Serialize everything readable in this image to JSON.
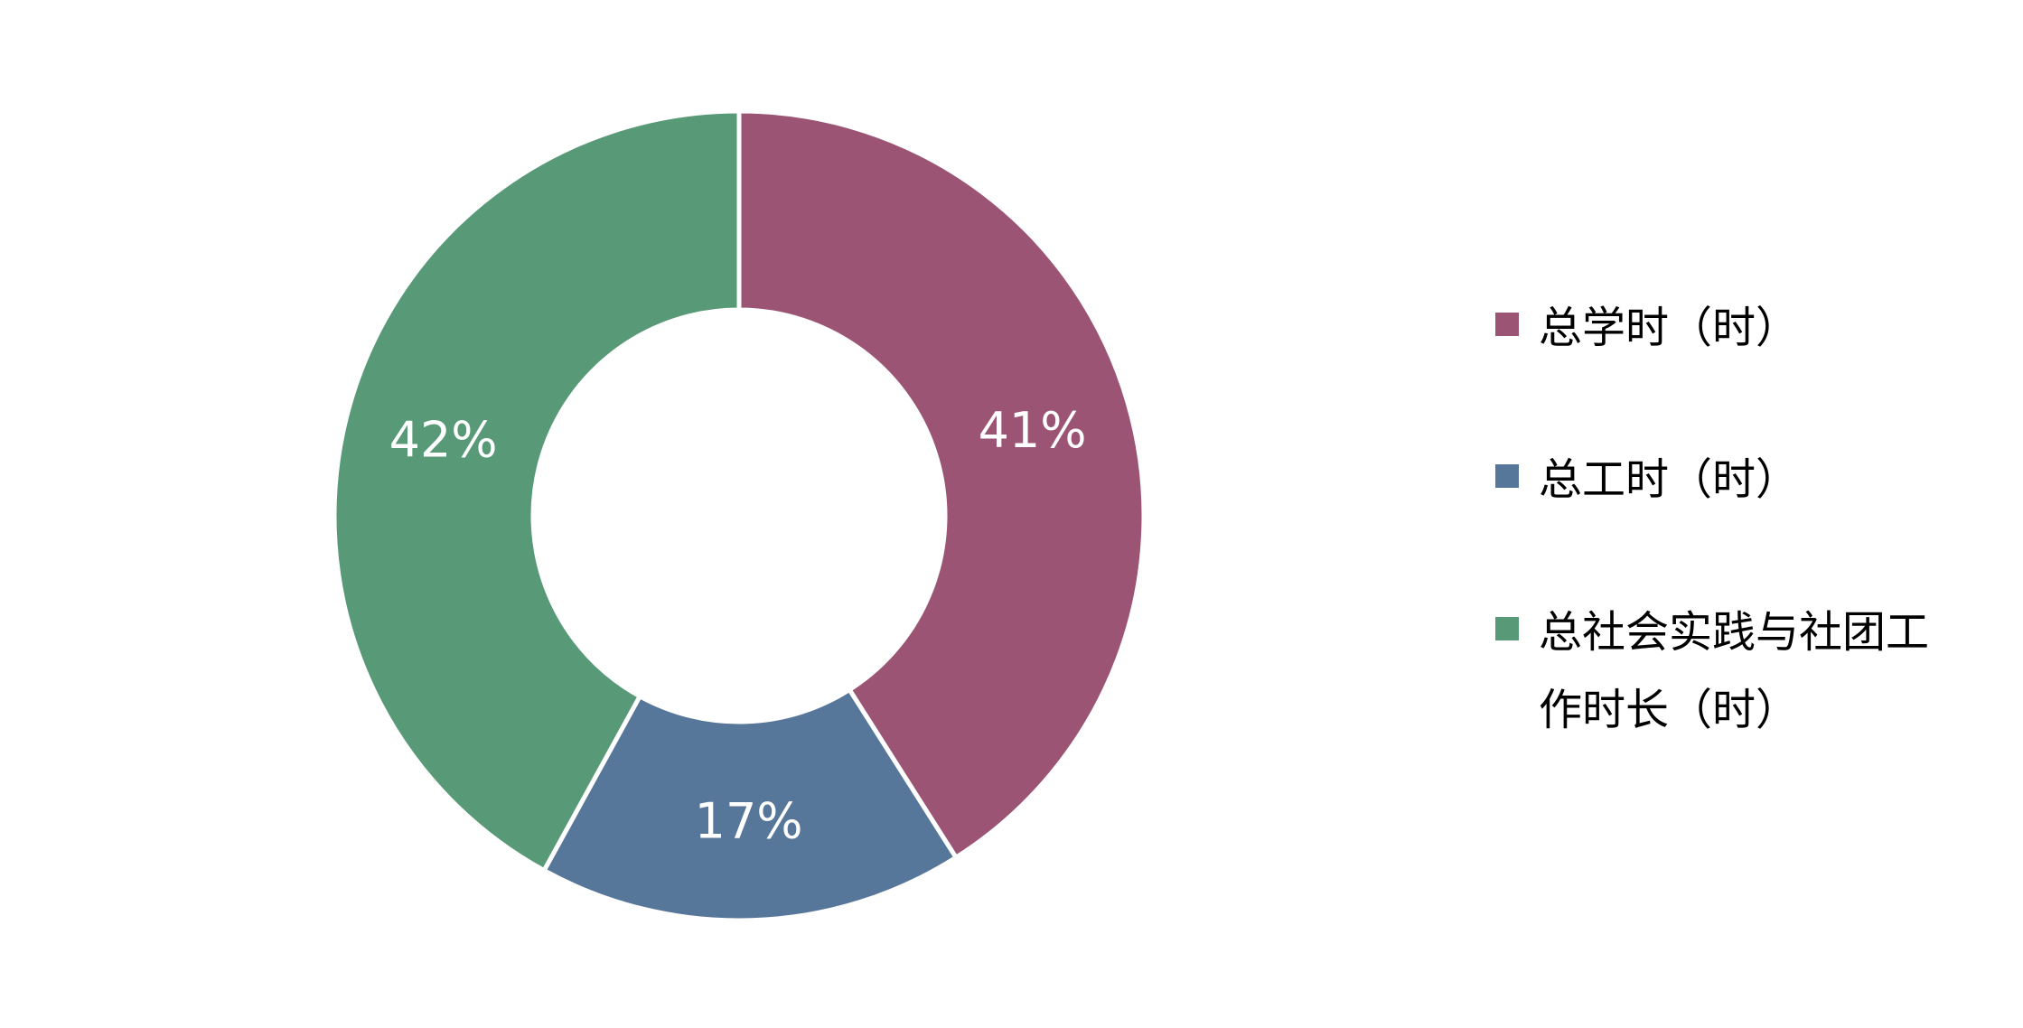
{
  "chart_data": {
    "type": "pie",
    "donut": true,
    "slices": [
      {
        "name": "总学时（时）",
        "value": 41,
        "label": "41%",
        "color": "#9b5474"
      },
      {
        "name": "总工时（时）",
        "value": 17,
        "label": "17%",
        "color": "#56769a"
      },
      {
        "name": "总社会实践与社团工作时长（时）",
        "value": 42,
        "label": "42%",
        "color": "#589a77"
      }
    ],
    "legend": {
      "placement": "right",
      "items": [
        {
          "label": "总学时（时）",
          "color": "#9b5474"
        },
        {
          "label": "总工时（时）",
          "color": "#56769a"
        },
        {
          "label": "总社会实践与社团工作时长（时）",
          "color": "#589a77"
        }
      ]
    }
  }
}
